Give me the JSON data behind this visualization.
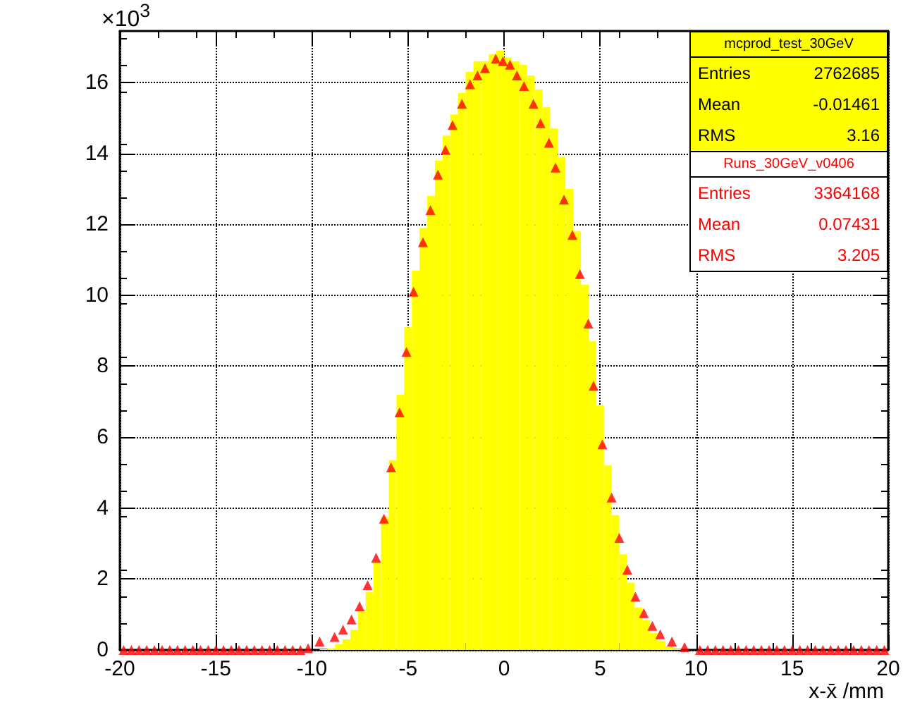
{
  "chart_data": {
    "type": "histogram",
    "xlabel": "x-x̄ /mm",
    "annotations": [
      "×10$^{3}$",
      "Entries 2762685",
      "Mean -0.01461",
      "RMS 3.16",
      "Entries 3364168",
      "Mean 0.07431",
      "RMS 3.205"
    ],
    "bins": [
      -9.6,
      -9.2,
      -8.8,
      -8.4,
      -8.0,
      -7.6,
      -7.2,
      -6.8,
      -6.4,
      -6.0,
      -5.6,
      -5.2,
      -4.8,
      -4.4,
      -4.0,
      -3.6,
      -3.2,
      -2.8,
      -2.4,
      -2.0,
      -1.6,
      -1.2,
      -0.8,
      -0.4,
      0,
      0.4,
      0.8,
      1.2,
      1.6,
      2.0,
      2.4,
      2.8,
      3.2,
      3.6,
      4.0,
      4.4,
      4.8,
      5.2,
      5.6,
      6.0,
      6.4,
      6.8,
      7.2,
      7.6,
      8.0,
      8.4,
      8.8,
      9.2
    ],
    "series": [
      {
        "name": "mcprod_test_30GeV",
        "color": "#ffff00",
        "values": [
          0.02,
          0.05,
          0.17,
          0.3,
          0.57,
          1.13,
          1.63,
          2.47,
          3.75,
          5.35,
          7.2,
          9.1,
          10.7,
          11.9,
          12.8,
          13.8,
          14.5,
          15.1,
          15.7,
          16.3,
          16.6,
          16.6,
          16.8,
          16.9,
          16.7,
          16.6,
          16.5,
          16.2,
          15.8,
          15.3,
          14.7,
          13.9,
          13.0,
          11.8,
          10.3,
          8.7,
          6.9,
          5.2,
          3.8,
          2.7,
          1.9,
          1.2,
          0.84,
          0.48,
          0.25,
          0.1,
          0.03
        ]
      },
      {
        "name": "Runs_30GeV_v0406",
        "type": "scatter",
        "color": "#ff0000",
        "x": [
          -19.8,
          -19.4,
          -19.0,
          -18.6,
          -18.2,
          -17.8,
          -17.4,
          -17.0,
          -16.6,
          -16.2,
          -15.8,
          -15.4,
          -15.0,
          -14.6,
          -14.2,
          -13.8,
          -13.4,
          -13.0,
          -12.6,
          -12.2,
          -11.8,
          -11.4,
          -11.0,
          -10.6,
          -10.2,
          -9.6,
          -8.82,
          -8.38,
          -7.94,
          -7.52,
          -7.1,
          -6.66,
          -6.25,
          -5.88,
          -5.44,
          -5.08,
          -4.71,
          -4.22,
          -3.83,
          -3.44,
          -3.05,
          -2.68,
          -2.19,
          -1.77,
          -1.38,
          -0.99,
          -0.43,
          -0.06,
          0.31,
          0.67,
          1.04,
          1.53,
          1.9,
          2.34,
          2.68,
          3.12,
          3.56,
          3.95,
          4.39,
          4.66,
          5.12,
          5.6,
          6.0,
          6.42,
          6.84,
          7.28,
          7.72,
          8.13,
          8.74,
          9.4,
          10.2,
          10.6,
          11.0,
          11.4,
          11.8,
          12.2,
          12.6,
          13.0,
          13.4,
          13.8,
          14.2,
          14.6,
          15.0,
          15.4,
          15.8,
          16.2,
          16.6,
          17.0,
          17.4,
          17.8,
          18.2,
          18.6,
          19.0,
          19.4,
          19.8
        ],
        "values": [
          0,
          0,
          0,
          0,
          0,
          0,
          0,
          0,
          0,
          0,
          0,
          0,
          0,
          0,
          0,
          0,
          0,
          0,
          0,
          0,
          0,
          0,
          0,
          0,
          0.05,
          0.24,
          0.37,
          0.57,
          0.86,
          1.23,
          1.83,
          2.6,
          3.7,
          5.15,
          6.7,
          8.4,
          10.1,
          11.5,
          12.4,
          13.4,
          14.1,
          14.8,
          15.4,
          15.95,
          16.2,
          16.4,
          16.67,
          16.6,
          16.5,
          16.2,
          15.9,
          15.4,
          14.85,
          14.3,
          13.6,
          12.7,
          11.7,
          10.6,
          9.2,
          7.45,
          5.8,
          4.3,
          3.16,
          2.26,
          1.5,
          1.04,
          0.68,
          0.44,
          0.24,
          0.08,
          0,
          0,
          0,
          0,
          0,
          0,
          0,
          0,
          0,
          0,
          0,
          0,
          0,
          0,
          0,
          0,
          0,
          0,
          0,
          0,
          0,
          0,
          0,
          0,
          0
        ]
      }
    ],
    "marker": "triangle",
    "xlim": [
      -20,
      20
    ],
    "xticks": [
      -20,
      -15,
      -10,
      -5,
      0,
      5,
      10,
      15,
      20
    ],
    "ylim": [
      0,
      17.45
    ],
    "yticks": [
      0,
      2,
      4,
      6,
      8,
      10,
      12,
      14,
      16
    ],
    "grid": true,
    "legend": "top right"
  }
}
